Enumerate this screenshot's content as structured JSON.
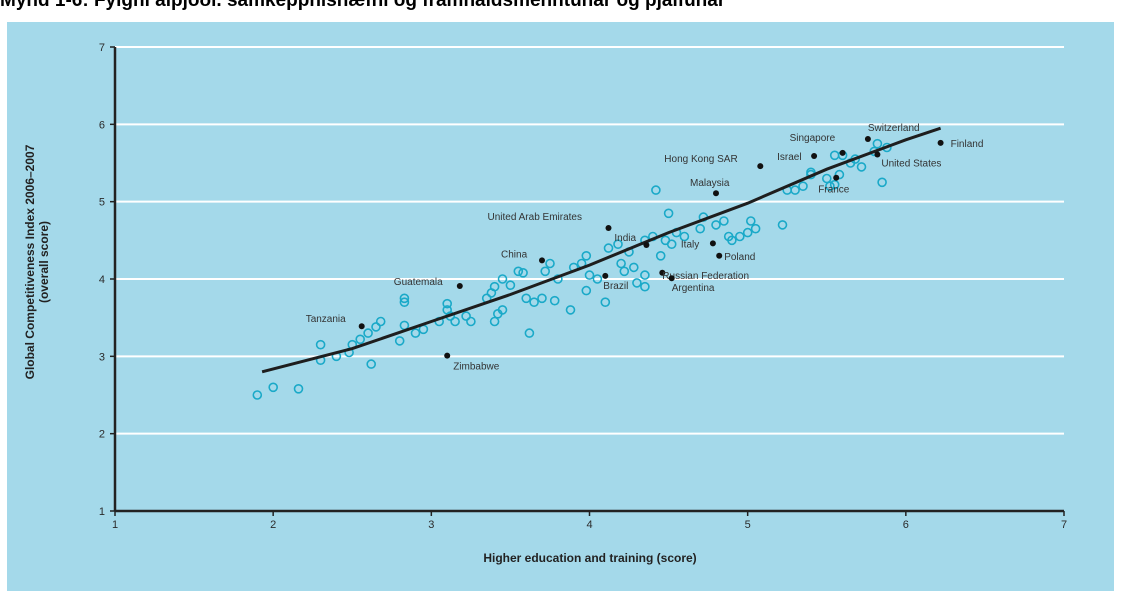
{
  "caption": "Mynd 1-6: Fylgni alþjóðl. samkeppnishæfni og framhaldsmenntunar og þjálfunar",
  "colors": {
    "background": "#a4d9ea",
    "gridline": "#ffffff",
    "point": "#1aa9c8",
    "highlight": "#111111",
    "trend": "#1e1e1e"
  },
  "chart_data": {
    "type": "scatter",
    "xlabel": "Higher education and training (score)",
    "ylabel": "Global Competitiveness Index 2006–2007",
    "ylabel2": "(overall score)",
    "xlim": [
      1,
      7
    ],
    "ylim": [
      1,
      7
    ],
    "xticks": [
      1,
      2,
      3,
      4,
      5,
      6,
      7
    ],
    "yticks": [
      1,
      2,
      3,
      4,
      5,
      6,
      7
    ],
    "grid": "horizontal",
    "trend": [
      [
        1.93,
        2.8
      ],
      [
        2.5,
        3.1
      ],
      [
        3,
        3.45
      ],
      [
        3.5,
        3.8
      ],
      [
        4,
        4.18
      ],
      [
        4.5,
        4.6
      ],
      [
        5,
        4.98
      ],
      [
        5.5,
        5.42
      ],
      [
        6,
        5.8
      ],
      [
        6.22,
        5.95
      ]
    ],
    "points": [
      [
        1.9,
        2.5
      ],
      [
        2,
        2.6
      ],
      [
        2.16,
        2.58
      ],
      [
        2.3,
        3.15
      ],
      [
        2.3,
        2.95
      ],
      [
        2.4,
        3
      ],
      [
        2.48,
        3.05
      ],
      [
        2.5,
        3.15
      ],
      [
        2.55,
        3.22
      ],
      [
        2.6,
        3.3
      ],
      [
        2.62,
        2.9
      ],
      [
        2.65,
        3.38
      ],
      [
        2.68,
        3.45
      ],
      [
        2.8,
        3.2
      ],
      [
        2.83,
        3.4
      ],
      [
        2.83,
        3.7
      ],
      [
        2.83,
        3.75
      ],
      [
        2.9,
        3.3
      ],
      [
        2.95,
        3.35
      ],
      [
        3.05,
        3.45
      ],
      [
        3.1,
        3.6
      ],
      [
        3.1,
        3.68
      ],
      [
        3.12,
        3.52
      ],
      [
        3.15,
        3.45
      ],
      [
        3.22,
        3.52
      ],
      [
        3.25,
        3.45
      ],
      [
        3.35,
        3.75
      ],
      [
        3.38,
        3.82
      ],
      [
        3.4,
        3.9
      ],
      [
        3.42,
        3.55
      ],
      [
        3.4,
        3.45
      ],
      [
        3.45,
        3.6
      ],
      [
        3.45,
        4
      ],
      [
        3.5,
        3.92
      ],
      [
        3.55,
        4.1
      ],
      [
        3.58,
        4.08
      ],
      [
        3.6,
        3.75
      ],
      [
        3.62,
        3.3
      ],
      [
        3.65,
        3.7
      ],
      [
        3.7,
        3.75
      ],
      [
        3.72,
        4.1
      ],
      [
        3.75,
        4.2
      ],
      [
        3.78,
        3.72
      ],
      [
        3.8,
        4
      ],
      [
        3.88,
        3.6
      ],
      [
        3.9,
        4.15
      ],
      [
        3.95,
        4.2
      ],
      [
        3.98,
        4.3
      ],
      [
        3.98,
        3.85
      ],
      [
        4,
        4.05
      ],
      [
        4.05,
        4
      ],
      [
        4.1,
        3.7
      ],
      [
        4.12,
        4.4
      ],
      [
        4.18,
        4.45
      ],
      [
        4.2,
        4.2
      ],
      [
        4.22,
        4.1
      ],
      [
        4.25,
        4.35
      ],
      [
        4.28,
        4.15
      ],
      [
        4.3,
        3.95
      ],
      [
        4.35,
        4.5
      ],
      [
        4.35,
        4.05
      ],
      [
        4.35,
        3.9
      ],
      [
        4.4,
        4.55
      ],
      [
        4.42,
        5.15
      ],
      [
        4.45,
        4.3
      ],
      [
        4.48,
        4.5
      ],
      [
        4.5,
        4.85
      ],
      [
        4.52,
        4.45
      ],
      [
        4.55,
        4.6
      ],
      [
        4.6,
        4.55
      ],
      [
        4.7,
        4.65
      ],
      [
        4.72,
        4.8
      ],
      [
        4.8,
        4.7
      ],
      [
        4.85,
        4.75
      ],
      [
        4.88,
        4.55
      ],
      [
        4.9,
        4.5
      ],
      [
        4.95,
        4.55
      ],
      [
        5,
        4.6
      ],
      [
        5.02,
        4.75
      ],
      [
        5.05,
        4.65
      ],
      [
        5.22,
        4.7
      ],
      [
        5.25,
        5.15
      ],
      [
        5.3,
        5.15
      ],
      [
        5.35,
        5.2
      ],
      [
        5.4,
        5.35
      ],
      [
        5.4,
        5.38
      ],
      [
        5.5,
        5.3
      ],
      [
        5.52,
        5.2
      ],
      [
        5.55,
        5.22
      ],
      [
        5.58,
        5.35
      ],
      [
        5.55,
        5.6
      ],
      [
        5.6,
        5.6
      ],
      [
        5.65,
        5.5
      ],
      [
        5.68,
        5.55
      ],
      [
        5.72,
        5.45
      ],
      [
        5.8,
        5.65
      ],
      [
        5.82,
        5.75
      ],
      [
        5.85,
        5.25
      ],
      [
        5.88,
        5.7
      ]
    ],
    "highlighted": [
      {
        "name": "Switzerland",
        "x": 5.76,
        "y": 5.81
      },
      {
        "name": "Finland",
        "x": 6.22,
        "y": 5.76
      },
      {
        "name": "Singapore",
        "x": 5.6,
        "y": 5.63
      },
      {
        "name": "Israel",
        "x": 5.42,
        "y": 5.59
      },
      {
        "name": "United States",
        "x": 5.82,
        "y": 5.61
      },
      {
        "name": "Hong Kong SAR",
        "x": 5.08,
        "y": 5.46
      },
      {
        "name": "France",
        "x": 5.56,
        "y": 5.31
      },
      {
        "name": "Malaysia",
        "x": 4.8,
        "y": 5.11
      },
      {
        "name": "United Arab Emirates",
        "x": 4.12,
        "y": 4.66
      },
      {
        "name": "India",
        "x": 4.36,
        "y": 4.44
      },
      {
        "name": "Italy",
        "x": 4.78,
        "y": 4.46
      },
      {
        "name": "Poland",
        "x": 4.82,
        "y": 4.3
      },
      {
        "name": "China",
        "x": 3.7,
        "y": 4.24
      },
      {
        "name": "Russian Federation",
        "x": 4.46,
        "y": 4.08
      },
      {
        "name": "Brazil",
        "x": 4.1,
        "y": 4.04
      },
      {
        "name": "Argentina",
        "x": 4.52,
        "y": 4.01
      },
      {
        "name": "Guatemala",
        "x": 3.18,
        "y": 3.91
      },
      {
        "name": "Tanzania",
        "x": 2.56,
        "y": 3.39
      },
      {
        "name": "Zimbabwe",
        "x": 3.1,
        "y": 3.01
      }
    ]
  }
}
